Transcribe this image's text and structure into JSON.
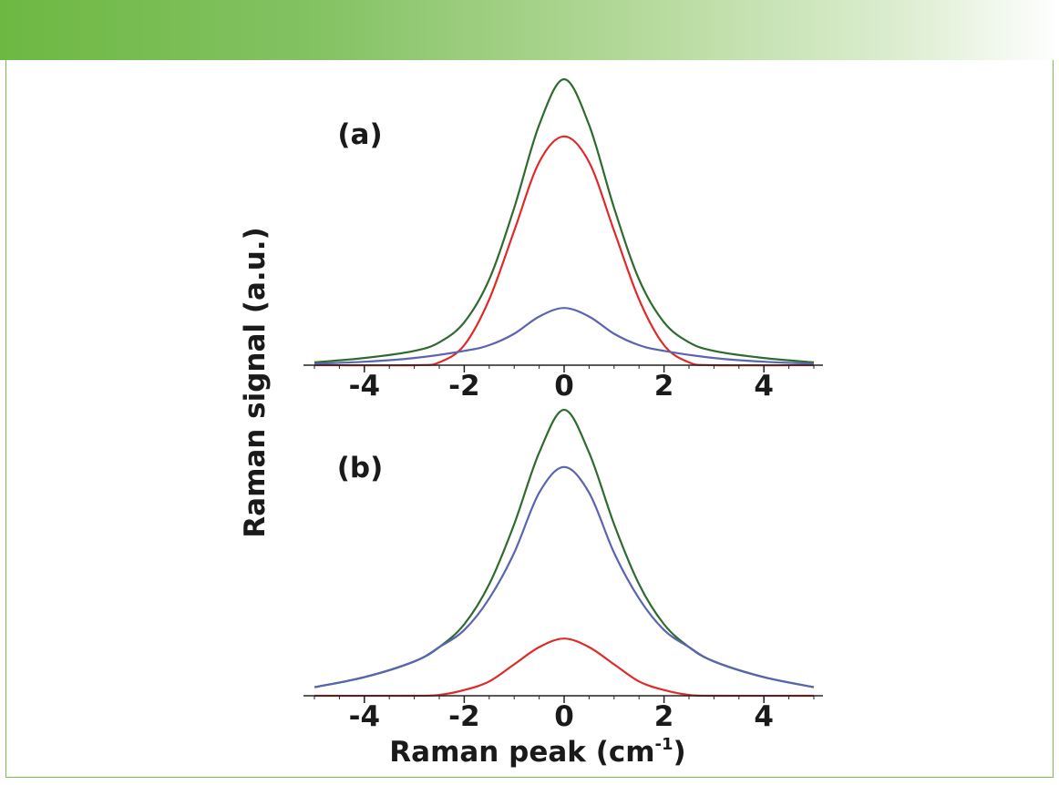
{
  "colors": {
    "banner_start": "#6db843",
    "frame": "#7cc04b",
    "axis": "#222222"
  },
  "labels": {
    "y_axis": "Raman signal (a.u.)",
    "x_axis_main": "Raman peak (cm",
    "x_axis_sup": "-1",
    "x_axis_end": ")"
  },
  "chart_data": [
    {
      "type": "line",
      "panel_label": "(a)",
      "x_range": [
        -5,
        5
      ],
      "y_range": [
        0,
        1
      ],
      "x_ticks": [
        -4,
        -2,
        0,
        2,
        4
      ],
      "tick_labels": [
        "-4",
        "-2",
        "0",
        "2",
        "4"
      ],
      "grid": false,
      "series": [
        {
          "color": "#2e6b2e",
          "x": [
            -5,
            -4,
            -3,
            -2.5,
            -2,
            -1.5,
            -1,
            -0.5,
            0,
            0.5,
            1,
            1.5,
            2,
            2.5,
            3,
            4,
            5
          ],
          "y": [
            0.01,
            0.025,
            0.05,
            0.08,
            0.15,
            0.3,
            0.55,
            0.84,
            1.0,
            0.84,
            0.55,
            0.3,
            0.15,
            0.08,
            0.05,
            0.025,
            0.01
          ]
        },
        {
          "color": "#e02a2a",
          "x": [
            -5,
            -3,
            -2.5,
            -2,
            -1.5,
            -1,
            -0.5,
            0,
            0.5,
            1,
            1.5,
            2,
            2.5,
            3,
            5
          ],
          "y": [
            0,
            0,
            0.01,
            0.07,
            0.23,
            0.47,
            0.71,
            0.8,
            0.71,
            0.47,
            0.23,
            0.07,
            0.01,
            0,
            0
          ]
        },
        {
          "color": "#5a64b0",
          "x": [
            -5,
            -4,
            -3,
            -2,
            -1.5,
            -1,
            -0.5,
            0,
            0.5,
            1,
            1.5,
            2,
            3,
            4,
            5
          ],
          "y": [
            0.005,
            0.012,
            0.025,
            0.05,
            0.07,
            0.11,
            0.17,
            0.2,
            0.17,
            0.11,
            0.07,
            0.05,
            0.025,
            0.012,
            0.005
          ]
        }
      ]
    },
    {
      "type": "line",
      "panel_label": "(b)",
      "x_range": [
        -5,
        5
      ],
      "y_range": [
        0,
        1
      ],
      "x_ticks": [
        -4,
        -2,
        0,
        2,
        4
      ],
      "tick_labels": [
        "-4",
        "-2",
        "0",
        "2",
        "4"
      ],
      "grid": false,
      "series": [
        {
          "color": "#2e6b2e",
          "x": [
            -5,
            -4,
            -3,
            -2.5,
            -2,
            -1.5,
            -1,
            -0.5,
            0,
            0.5,
            1,
            1.5,
            2,
            2.5,
            3,
            4,
            5
          ],
          "y": [
            0.03,
            0.065,
            0.12,
            0.17,
            0.25,
            0.39,
            0.6,
            0.85,
            1.0,
            0.85,
            0.6,
            0.39,
            0.25,
            0.17,
            0.12,
            0.065,
            0.03
          ]
        },
        {
          "color": "#5a64b0",
          "x": [
            -5,
            -4,
            -3,
            -2.5,
            -2,
            -1.5,
            -1,
            -0.5,
            0,
            0.5,
            1,
            1.5,
            2,
            2.5,
            3,
            4,
            5
          ],
          "y": [
            0.03,
            0.065,
            0.12,
            0.17,
            0.23,
            0.34,
            0.5,
            0.71,
            0.8,
            0.71,
            0.5,
            0.34,
            0.23,
            0.17,
            0.12,
            0.065,
            0.03
          ]
        },
        {
          "color": "#e02a2a",
          "x": [
            -5,
            -3,
            -2.5,
            -2,
            -1.5,
            -1,
            -0.5,
            0,
            0.5,
            1,
            1.5,
            2,
            2.5,
            3,
            5
          ],
          "y": [
            0,
            0,
            0.003,
            0.02,
            0.05,
            0.11,
            0.17,
            0.2,
            0.17,
            0.11,
            0.05,
            0.02,
            0.003,
            0,
            0
          ]
        }
      ]
    }
  ]
}
